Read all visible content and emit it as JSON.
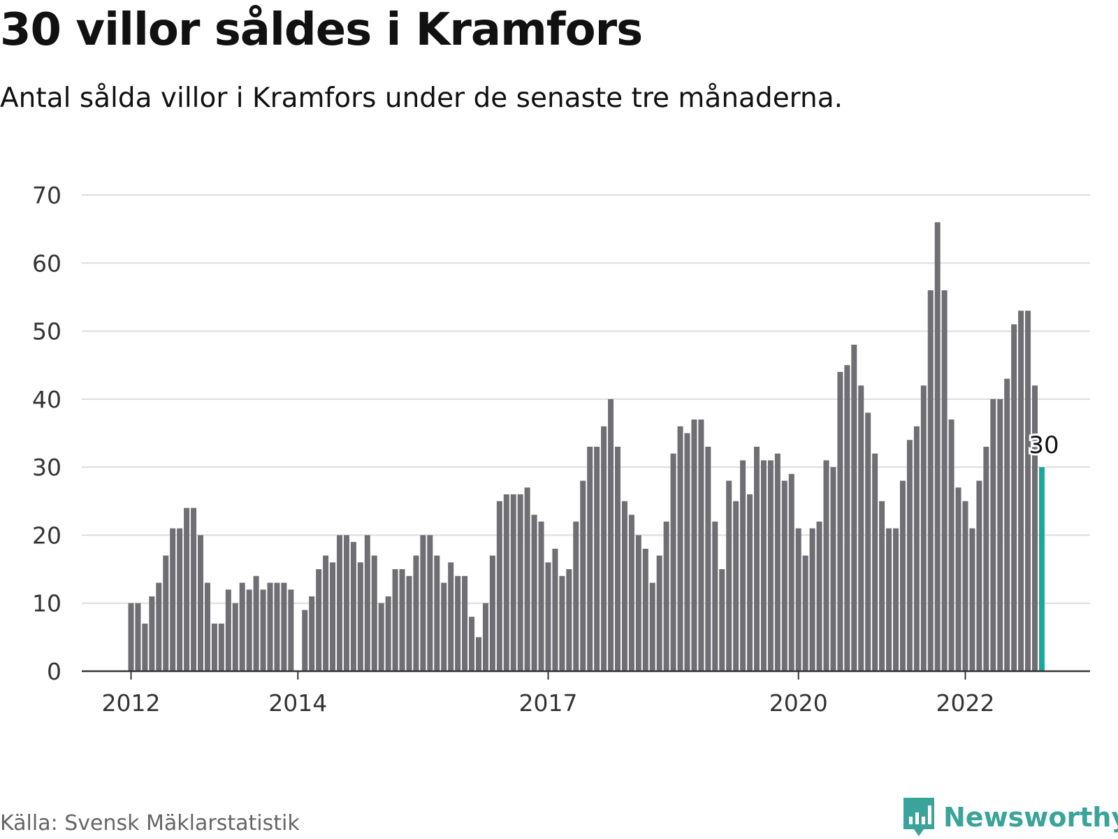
{
  "title": "30 villor såldes i Kramfors",
  "subtitle": "Antal sålda villor i Kramfors under de senaste tre månaderna.",
  "source": "Källa: Svensk Mäklarstatistik",
  "brand": {
    "name": "Newsworthy",
    "color": "#3aa39a",
    "icon": "newsworthy-logo-icon"
  },
  "colors": {
    "bar": "#6e6e73",
    "highlight": "#1aa79b",
    "grid": "#dddddd",
    "axis": "#333333",
    "text": "#333333"
  },
  "chart_data": {
    "type": "bar",
    "title": "30 villor såldes i Kramfors",
    "subtitle": "Antal sålda villor i Kramfors under de senaste tre månaderna.",
    "xlabel": "",
    "ylabel": "",
    "ylim": [
      0,
      70
    ],
    "yticks": [
      0,
      10,
      20,
      30,
      40,
      50,
      60,
      70
    ],
    "grid": true,
    "start": "2012-01",
    "xtick_labels": [
      {
        "label": "2012",
        "index": 0
      },
      {
        "label": "2014",
        "index": 24
      },
      {
        "label": "2017",
        "index": 60
      },
      {
        "label": "2020",
        "index": 96
      },
      {
        "label": "2022",
        "index": 120
      }
    ],
    "values": [
      10,
      10,
      7,
      11,
      13,
      17,
      21,
      21,
      24,
      24,
      20,
      13,
      7,
      7,
      12,
      10,
      13,
      12,
      14,
      12,
      13,
      13,
      13,
      12,
      null,
      9,
      11,
      15,
      17,
      16,
      20,
      20,
      19,
      16,
      20,
      17,
      10,
      11,
      15,
      15,
      14,
      17,
      20,
      20,
      17,
      13,
      16,
      14,
      14,
      8,
      5,
      10,
      17,
      25,
      26,
      26,
      26,
      27,
      23,
      22,
      16,
      18,
      14,
      15,
      22,
      28,
      33,
      33,
      36,
      40,
      33,
      25,
      23,
      20,
      18,
      13,
      17,
      22,
      32,
      36,
      35,
      37,
      37,
      33,
      22,
      15,
      28,
      25,
      31,
      26,
      33,
      31,
      31,
      32,
      28,
      29,
      21,
      17,
      21,
      22,
      31,
      30,
      44,
      45,
      48,
      42,
      38,
      32,
      25,
      21,
      21,
      28,
      34,
      36,
      42,
      56,
      66,
      56,
      37,
      27,
      25,
      21,
      28,
      33,
      40,
      40,
      43,
      51,
      53,
      53,
      42,
      30
    ],
    "highlight_index": 131,
    "highlight_label": "30"
  }
}
